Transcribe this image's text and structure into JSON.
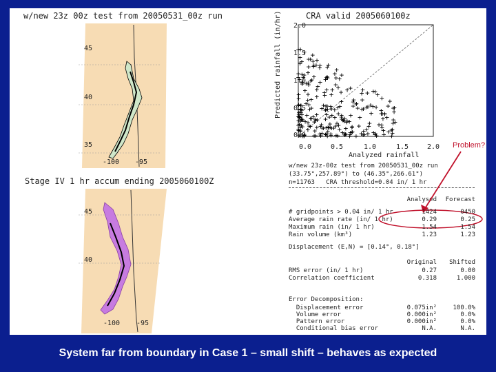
{
  "top_map": {
    "title": "w/new 23z 00z test from 20050531_00z run",
    "lat_labels": [
      "45",
      "40",
      "35"
    ],
    "lon_labels": [
      "-100",
      "-95"
    ]
  },
  "bottom_map": {
    "title": "Stage IV 1 hr accum ending 2005060100Z",
    "lat_labels": [
      "45",
      "40"
    ],
    "lon_labels": [
      "-100",
      "-95"
    ]
  },
  "scatter": {
    "title": "CRA valid 2005060100z",
    "xlabel": "Analyzed rainfall",
    "ylabel": "Predicted rainfall (in/hr)",
    "x_ticks": [
      "0.0",
      "0.5",
      "1.0",
      "1.5",
      "2.0"
    ],
    "y_ticks": [
      "0.0",
      "0.5",
      "1.0",
      "1.5",
      "2.0"
    ]
  },
  "stats": {
    "header_line1": "w/new 23z-00z test from 20050531_00z run",
    "header_line2": "(33.75°,257.89°) to (46.35°,266.61°)",
    "header_line3": "n=11763   CRA threshold=0.04 in/ 1 hr",
    "col_analyzed": "Analysed",
    "col_forecast": "Forecast",
    "rows": [
      {
        "label": "# gridpoints > 0.04 in/ 1 hr",
        "analyzed": "1424",
        "forecast": "0450"
      },
      {
        "label": "Average rain rate (in/ 1 hr)",
        "analyzed": "0.29",
        "forecast": "0.25"
      },
      {
        "label": "Maximum rain (in/ 1 hr)",
        "analyzed": "1.54",
        "forecast": "1.54"
      },
      {
        "label": "Rain volume (km³)",
        "analyzed": "1.23",
        "forecast": "1.23"
      }
    ],
    "displacement": "Displacement (E,N) = [0.14°, 0.18°]",
    "col_original": "Original",
    "col_shifted": "Shifted",
    "error_rows": [
      {
        "label": "RMS error (in/ 1 hr)",
        "original": "0.27",
        "shifted": "0.00"
      },
      {
        "label": "Correlation coefficient",
        "original": "0.318",
        "shifted": "1.000"
      }
    ],
    "decomp_title": "Error Decomposition:",
    "decomp_rows": [
      {
        "label": "Displacement error",
        "value": "0.075in²",
        "pct": "100.0%"
      },
      {
        "label": "Volume error",
        "value": "0.000in²",
        "pct": "0.0%"
      },
      {
        "label": "Pattern error",
        "value": "0.000in²",
        "pct": "0.0%"
      },
      {
        "label": "Conditional bias error",
        "value": "N.A.",
        "pct": "N.A."
      }
    ]
  },
  "annotation": {
    "label": "Problem?",
    "color": "#c0102a"
  },
  "caption": "System far from boundary in Case 1 – small shift – behaves as expected",
  "colors": {
    "frame": "#0b1f8f",
    "map_fill": "#f7dcb4",
    "highlight": "#c0102a",
    "analysis_fill": "#c77be0"
  }
}
